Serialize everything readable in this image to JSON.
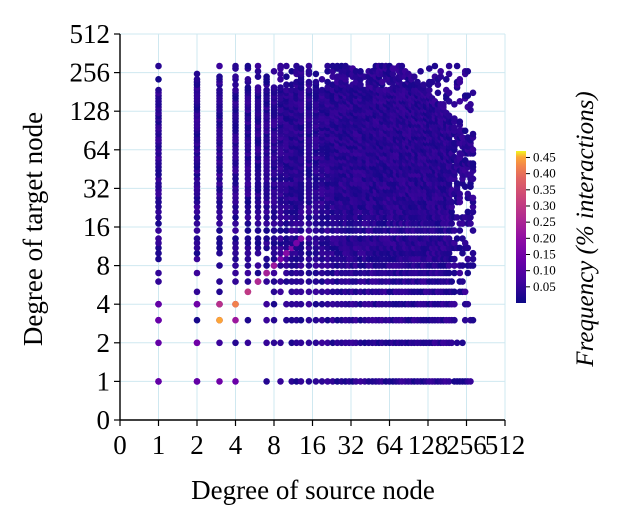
{
  "chart_data": {
    "type": "scatter",
    "title": "",
    "xlabel": "Degree of source node",
    "ylabel": "Degree of target node",
    "x_scale": "log2 (0 shown at left end)",
    "y_scale": "log2 (0 shown at bottom end)",
    "x_ticks": [
      "0",
      "1",
      "2",
      "4",
      "8",
      "16",
      "32",
      "64",
      "128",
      "256",
      "512"
    ],
    "y_ticks": [
      "0",
      "1",
      "2",
      "4",
      "8",
      "16",
      "32",
      "64",
      "128",
      "256",
      "512"
    ],
    "grid": true,
    "colorbar": {
      "label": "Frequency (% interactions)",
      "ticks": [
        "0.05",
        "0.10",
        "0.15",
        "0.20",
        "0.25",
        "0.30",
        "0.35",
        "0.40",
        "0.45"
      ],
      "range": [
        0,
        0.47
      ],
      "colormap": "plasma"
    },
    "summary": "Dense cloud of points for source and target degrees roughly 1 to 300; frequency mostly below 0.1 % with higher frequencies along the diagonal at low degrees.",
    "highlight_points": [
      {
        "x": 3,
        "y": 3,
        "value": 0.45
      },
      {
        "x": 4,
        "y": 4,
        "value": 0.42
      },
      {
        "x": 3,
        "y": 4,
        "value": 0.28
      },
      {
        "x": 4,
        "y": 3,
        "value": 0.22
      },
      {
        "x": 5,
        "y": 5,
        "value": 0.3
      },
      {
        "x": 6,
        "y": 6,
        "value": 0.26
      },
      {
        "x": 7,
        "y": 7,
        "value": 0.24
      },
      {
        "x": 8,
        "y": 8,
        "value": 0.22
      },
      {
        "x": 10,
        "y": 10,
        "value": 0.18
      },
      {
        "x": 12,
        "y": 12,
        "value": 0.15
      },
      {
        "x": 1,
        "y": 1,
        "value": 0.12
      },
      {
        "x": 2,
        "y": 2,
        "value": 0.14
      },
      {
        "x": 1,
        "y": 2,
        "value": 0.12
      },
      {
        "x": 2,
        "y": 1,
        "value": 0.12
      },
      {
        "x": 3,
        "y": 1,
        "value": 0.14
      },
      {
        "x": 4,
        "y": 1,
        "value": 0.13
      },
      {
        "x": 2,
        "y": 4,
        "value": 0.14
      },
      {
        "x": 1,
        "y": 4,
        "value": 0.12
      },
      {
        "x": 1,
        "y": 3,
        "value": 0.13
      }
    ]
  }
}
